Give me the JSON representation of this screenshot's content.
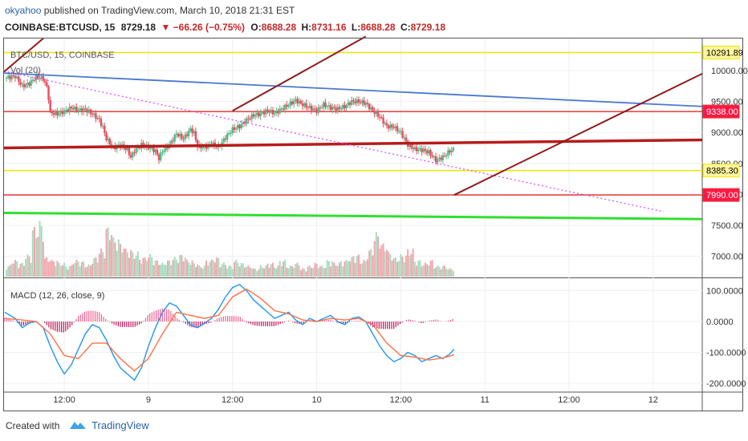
{
  "header": {
    "user": "okyahoo",
    "published": "published on TradingView.com, March 10, 2018 21:31 EST"
  },
  "ticker": {
    "symbol": "COINBASE:BTCUSD, 15",
    "last": "8729.18",
    "change": "▼ −66.26 (−0.75%)",
    "o_label": "O:",
    "o": "8688.28",
    "h_label": "H:",
    "h": "8731.16",
    "l_label": "L:",
    "l": "8688.28",
    "c_label": "C:",
    "c": "8729.18"
  },
  "legend": {
    "main": "BTC/USD, 15, COINBASE",
    "vol": "Vol (20)",
    "macd": "MACD (12, 26, close, 9)"
  },
  "footer": {
    "created_with": "Created with",
    "brand": "TradingView"
  },
  "colors": {
    "up": "#53b987",
    "down": "#eb4d5c",
    "yellow": "#f2e600",
    "red_level": "#e53935",
    "dark_red": "#b71c1c",
    "blue": "#4a78d0",
    "green": "#2ee02e",
    "magenta": "#e040fb",
    "macd": "#2196f3",
    "signal": "#ff7043"
  },
  "chart_data": [
    {
      "type": "candlestick",
      "title": "BTC/USD, 15, COINBASE",
      "ylim": [
        6700,
        10500
      ],
      "y_ticks": [
        7000,
        7500,
        8000,
        8500,
        9000,
        9500,
        10000
      ],
      "y_tick_labels": [
        "7000.00",
        "7500.00",
        "8000.00",
        "8500.00",
        "9000.00",
        "9500.00",
        "10000.00"
      ],
      "x_ticks": [
        {
          "label": "12:00",
          "t": 12
        },
        {
          "label": "9",
          "t": 24
        },
        {
          "label": "12:00",
          "t": 36
        },
        {
          "label": "10",
          "t": 48
        },
        {
          "label": "12:00",
          "t": 60
        },
        {
          "label": "11",
          "t": 72
        },
        {
          "label": "12:00",
          "t": 84
        },
        {
          "label": "12",
          "t": 96
        }
      ],
      "t_range": [
        3.4,
        103
      ],
      "close_path": [
        [
          3.5,
          9880
        ],
        [
          5,
          9910
        ],
        [
          6,
          9750
        ],
        [
          7,
          9790
        ],
        [
          8,
          9900
        ],
        [
          9,
          9870
        ],
        [
          9.6,
          9700
        ],
        [
          10,
          9320
        ],
        [
          11,
          9300
        ],
        [
          12,
          9340
        ],
        [
          13,
          9400
        ],
        [
          14,
          9360
        ],
        [
          15,
          9370
        ],
        [
          16,
          9300
        ],
        [
          17,
          9200
        ],
        [
          17.5,
          9080
        ],
        [
          18,
          8900
        ],
        [
          19,
          8750
        ],
        [
          20,
          8800
        ],
        [
          21,
          8720
        ],
        [
          21.5,
          8600
        ],
        [
          22,
          8700
        ],
        [
          23,
          8800
        ],
        [
          24,
          8760
        ],
        [
          25,
          8700
        ],
        [
          25.5,
          8580
        ],
        [
          26,
          8700
        ],
        [
          27,
          8800
        ],
        [
          28,
          8980
        ],
        [
          29,
          8900
        ],
        [
          30,
          9050
        ],
        [
          30.5,
          8990
        ],
        [
          31,
          8780
        ],
        [
          32,
          8760
        ],
        [
          33,
          8820
        ],
        [
          34,
          8760
        ],
        [
          35,
          8920
        ],
        [
          36,
          9050
        ],
        [
          37,
          9100
        ],
        [
          38,
          9200
        ],
        [
          39,
          9280
        ],
        [
          40,
          9300
        ],
        [
          41,
          9350
        ],
        [
          42,
          9310
        ],
        [
          43,
          9380
        ],
        [
          44,
          9450
        ],
        [
          45,
          9520
        ],
        [
          46,
          9450
        ],
        [
          47,
          9400
        ],
        [
          48,
          9350
        ],
        [
          49,
          9450
        ],
        [
          50,
          9400
        ],
        [
          51,
          9380
        ],
        [
          52,
          9420
        ],
        [
          53,
          9500
        ],
        [
          54,
          9500
        ],
        [
          55,
          9470
        ],
        [
          56,
          9350
        ],
        [
          57,
          9250
        ],
        [
          58,
          9100
        ],
        [
          59,
          9090
        ],
        [
          60,
          9000
        ],
        [
          61,
          8800
        ],
        [
          62,
          8730
        ],
        [
          63,
          8720
        ],
        [
          64,
          8680
        ],
        [
          65,
          8550
        ],
        [
          66,
          8600
        ],
        [
          67,
          8700
        ],
        [
          67.6,
          8729
        ]
      ],
      "levels": [
        {
          "value": 10291.89,
          "label": "10291.89",
          "color": "#f2e600",
          "label_bg": "#fff59d",
          "label_fg": "#000"
        },
        {
          "value": 9338.0,
          "label": "9338.00",
          "color": "#e53935",
          "label_bg": "#ff1744",
          "label_fg": "#fff"
        },
        {
          "value": 8385.3,
          "label": "8385.30",
          "color": "#f2e600",
          "label_bg": "#fff59d",
          "label_fg": "#000"
        },
        {
          "value": 7990.0,
          "label": "7990.00",
          "color": "#e53935",
          "label_bg": "#ff1744",
          "label_fg": "#fff"
        }
      ],
      "trendlines": [
        {
          "from": [
            3.4,
            8750
          ],
          "to": [
            103,
            8880
          ],
          "color": "#b71c1c",
          "width": 3.5,
          "dash": ""
        },
        {
          "from": [
            3.4,
            7700
          ],
          "to": [
            103,
            7600
          ],
          "color": "#2ee02e",
          "width": 3,
          "dash": ""
        },
        {
          "from": [
            3.4,
            9960
          ],
          "to": [
            103,
            9420
          ],
          "color": "#4a78d0",
          "width": 1.8,
          "dash": ""
        },
        {
          "from": [
            3.4,
            9990
          ],
          "to": [
            97.5,
            7720
          ],
          "color": "#e040fb",
          "width": 1.2,
          "dash": "2,3"
        },
        {
          "from": [
            36,
            9350
          ],
          "to": [
            55,
            10550
          ],
          "color": "#8e1b1b",
          "width": 2,
          "dash": ""
        },
        {
          "from": [
            67.6,
            7990
          ],
          "to": [
            103,
            9950
          ],
          "color": "#8e1b1b",
          "width": 2,
          "dash": ""
        },
        {
          "from": [
            3.4,
            9980
          ],
          "to": [
            9,
            10520
          ],
          "color": "#8e1b1b",
          "width": 2,
          "dash": ""
        }
      ]
    },
    {
      "type": "bar",
      "title": "Vol (20)",
      "note": "volume histogram (relative)",
      "values_relative": [
        0.2,
        0.3,
        0.25,
        0.4,
        0.9,
        1.0,
        0.35,
        0.3,
        0.25,
        0.2,
        0.3,
        0.28,
        0.22,
        0.35,
        0.5,
        0.9,
        0.7,
        0.6,
        0.5,
        0.45,
        0.35,
        0.4,
        0.3,
        0.25,
        0.3,
        0.35,
        0.4,
        0.3,
        0.25,
        0.2,
        0.3,
        0.35,
        0.25,
        0.2,
        0.3,
        0.25,
        0.2,
        0.15,
        0.2,
        0.25,
        0.2,
        0.3,
        0.2,
        0.25,
        0.15,
        0.2,
        0.25,
        0.2,
        0.3,
        0.25,
        0.3,
        0.35,
        0.4,
        0.3,
        0.5,
        0.8,
        0.6,
        0.45,
        0.35,
        0.4,
        0.5,
        0.3,
        0.25,
        0.3,
        0.2,
        0.2,
        0.15
      ]
    },
    {
      "type": "line",
      "title": "MACD (12, 26, close, 9)",
      "ylim": [
        -210,
        125
      ],
      "y_ticks": [
        100,
        0,
        -100,
        -200
      ],
      "y_tick_labels": [
        "100.0000",
        "0.0000",
        "-100.0000",
        "-200.0000"
      ],
      "series": [
        {
          "name": "MACD",
          "color": "#2196f3",
          "points": [
            [
              3.5,
              30
            ],
            [
              5,
              10
            ],
            [
              6,
              -20
            ],
            [
              7,
              -5
            ],
            [
              8,
              0
            ],
            [
              9,
              -20
            ],
            [
              10,
              -80
            ],
            [
              11,
              -130
            ],
            [
              12,
              -170
            ],
            [
              13,
              -140
            ],
            [
              14,
              -90
            ],
            [
              15,
              -40
            ],
            [
              16,
              -10
            ],
            [
              17,
              -20
            ],
            [
              18,
              -60
            ],
            [
              19,
              -110
            ],
            [
              20,
              -150
            ],
            [
              21,
              -170
            ],
            [
              22,
              -190
            ],
            [
              23,
              -150
            ],
            [
              24,
              -80
            ],
            [
              25,
              -20
            ],
            [
              26,
              30
            ],
            [
              27,
              60
            ],
            [
              28,
              50
            ],
            [
              29,
              20
            ],
            [
              30,
              -10
            ],
            [
              31,
              -20
            ],
            [
              32,
              -5
            ],
            [
              33,
              10
            ],
            [
              34,
              40
            ],
            [
              35,
              80
            ],
            [
              36,
              110
            ],
            [
              37,
              120
            ],
            [
              38,
              100
            ],
            [
              39,
              70
            ],
            [
              40,
              50
            ],
            [
              41,
              30
            ],
            [
              42,
              10
            ],
            [
              43,
              20
            ],
            [
              44,
              30
            ],
            [
              45,
              5
            ],
            [
              46,
              -10
            ],
            [
              47,
              10
            ],
            [
              48,
              0
            ],
            [
              49,
              10
            ],
            [
              50,
              20
            ],
            [
              51,
              0
            ],
            [
              52,
              -10
            ],
            [
              53,
              10
            ],
            [
              54,
              15
            ],
            [
              55,
              0
            ],
            [
              56,
              -40
            ],
            [
              57,
              -80
            ],
            [
              58,
              -110
            ],
            [
              59,
              -130
            ],
            [
              60,
              -120
            ],
            [
              61,
              -100
            ],
            [
              62,
              -110
            ],
            [
              63,
              -130
            ],
            [
              64,
              -120
            ],
            [
              65,
              -110
            ],
            [
              66,
              -120
            ],
            [
              67,
              -105
            ],
            [
              67.6,
              -90
            ]
          ]
        },
        {
          "name": "Signal",
          "color": "#ff7043",
          "points": [
            [
              3.5,
              10
            ],
            [
              6,
              5
            ],
            [
              8,
              0
            ],
            [
              10,
              -40
            ],
            [
              12,
              -110
            ],
            [
              14,
              -120
            ],
            [
              16,
              -70
            ],
            [
              18,
              -70
            ],
            [
              20,
              -120
            ],
            [
              22,
              -160
            ],
            [
              24,
              -120
            ],
            [
              26,
              -40
            ],
            [
              28,
              30
            ],
            [
              30,
              20
            ],
            [
              32,
              10
            ],
            [
              34,
              20
            ],
            [
              36,
              80
            ],
            [
              38,
              105
            ],
            [
              40,
              75
            ],
            [
              42,
              35
            ],
            [
              44,
              25
            ],
            [
              46,
              5
            ],
            [
              48,
              0
            ],
            [
              50,
              10
            ],
            [
              52,
              5
            ],
            [
              54,
              10
            ],
            [
              56,
              -10
            ],
            [
              58,
              -70
            ],
            [
              60,
              -110
            ],
            [
              62,
              -115
            ],
            [
              64,
              -125
            ],
            [
              66,
              -118
            ],
            [
              67.6,
              -108
            ]
          ]
        }
      ],
      "histogram_relative": "difference between MACD and Signal"
    }
  ]
}
